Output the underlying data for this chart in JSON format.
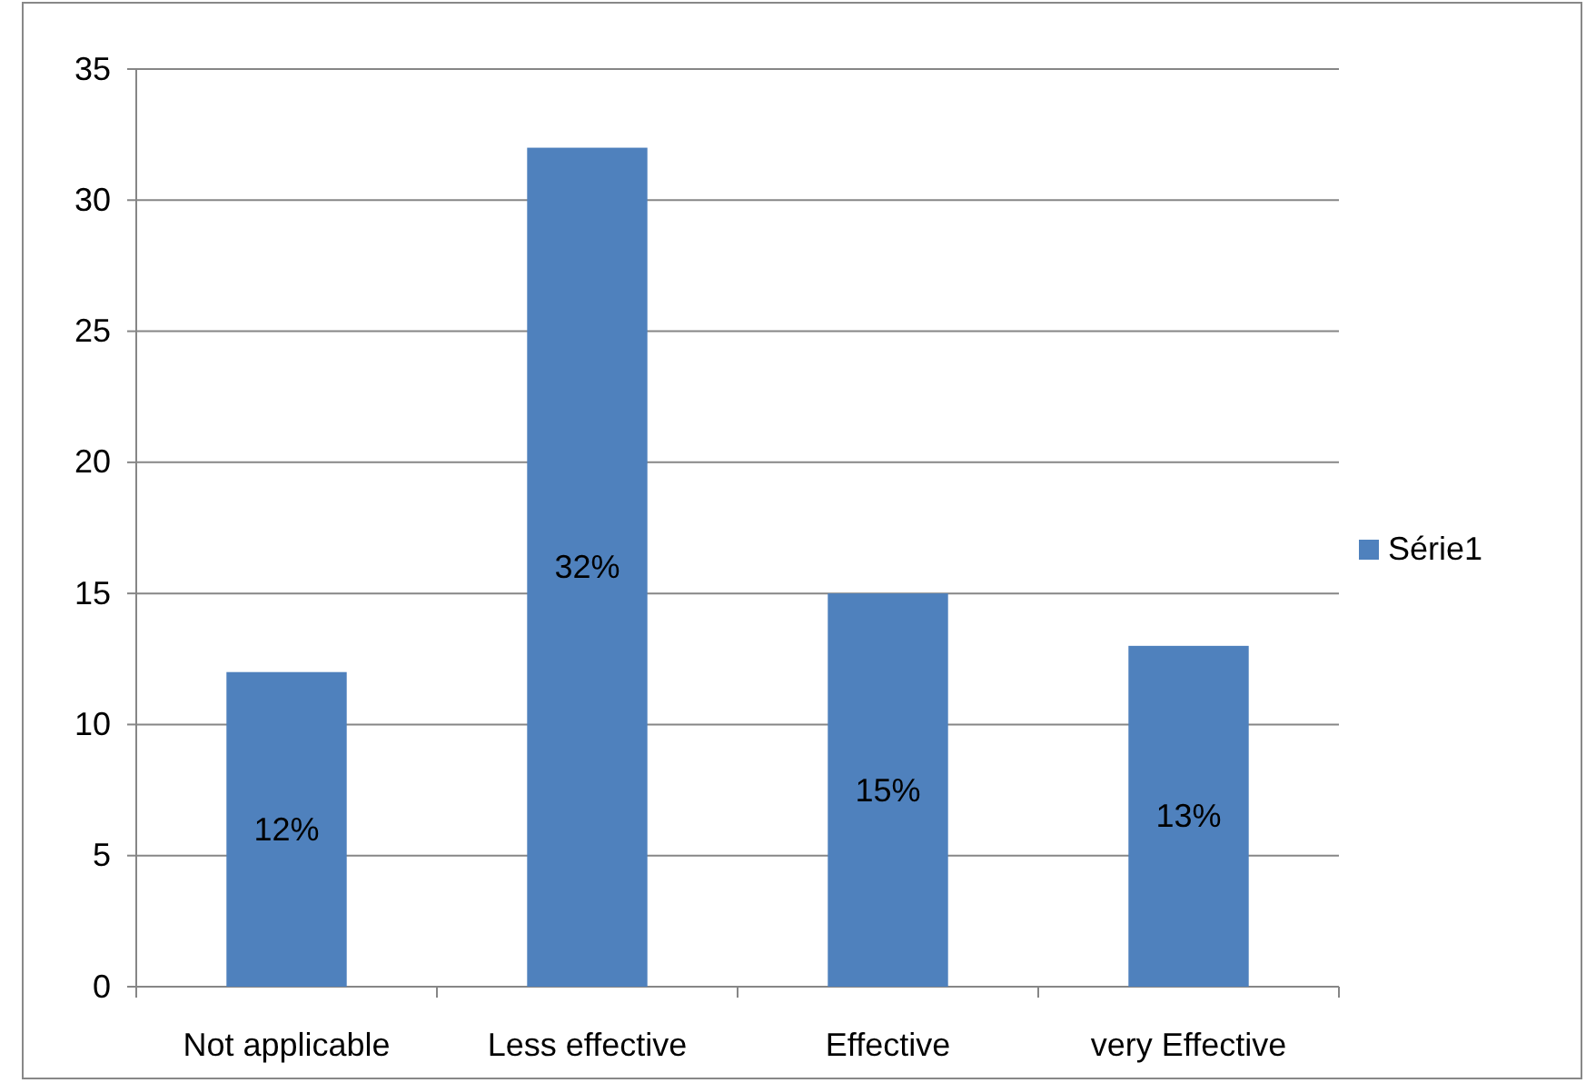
{
  "chart_data": {
    "type": "bar",
    "categories": [
      "Not applicable",
      "Less effective",
      "Effective",
      "very Effective"
    ],
    "series": [
      {
        "name": "Série1",
        "color": "#4f81bd",
        "values": [
          12,
          32,
          15,
          13
        ],
        "value_labels": [
          "12%",
          "32%",
          "15%",
          "13%"
        ]
      }
    ],
    "ylim": [
      0,
      35
    ],
    "yticks": [
      0,
      5,
      10,
      15,
      20,
      25,
      30,
      35
    ],
    "grid": "y",
    "legend": "right"
  }
}
